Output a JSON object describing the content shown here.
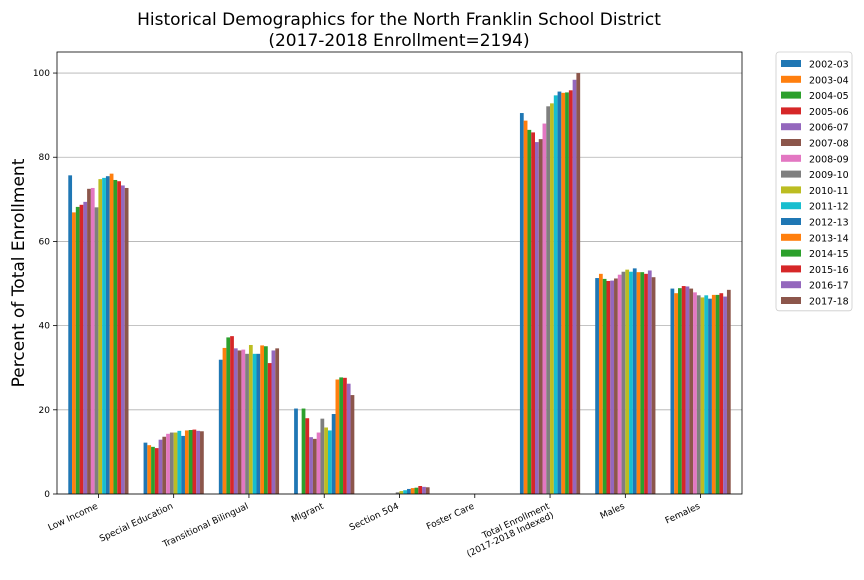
{
  "chart_data": {
    "type": "bar",
    "title": "Historical Demographics for the North Franklin School District",
    "subtitle": "(2017-2018 Enrollment=2194)",
    "xlabel": "",
    "ylabel": "Percent of Total Enrollment",
    "ylim": [
      0,
      105
    ],
    "yticks": [
      0,
      20,
      40,
      60,
      80,
      100
    ],
    "grid": "horizontal",
    "legend_position": "outside-top-right",
    "categories": [
      "Low Income",
      "Special Education",
      "Transitional Bilingual",
      "Migrant",
      "Section 504",
      "Foster Care",
      "Total Enrollment\n(2017-2018 Indexed)",
      "Males",
      "Females"
    ],
    "series": [
      {
        "name": "2002-03",
        "color": "#1f77b4",
        "values": [
          75.7,
          12.2,
          31.9,
          20.3,
          0.0,
          0.0,
          90.5,
          51.3,
          48.8
        ]
      },
      {
        "name": "2003-04",
        "color": "#ff7f0e",
        "values": [
          66.9,
          11.6,
          34.7,
          0.0,
          0.0,
          0.0,
          88.7,
          52.3,
          47.7
        ]
      },
      {
        "name": "2004-05",
        "color": "#2ca02c",
        "values": [
          68.2,
          11.2,
          37.2,
          20.3,
          0.0,
          0.0,
          86.5,
          51.1,
          48.9
        ]
      },
      {
        "name": "2005-06",
        "color": "#d62728",
        "values": [
          68.7,
          10.9,
          37.5,
          18.0,
          0.0,
          0.0,
          85.9,
          50.6,
          49.4
        ]
      },
      {
        "name": "2006-07",
        "color": "#9467bd",
        "values": [
          69.4,
          12.9,
          34.6,
          13.5,
          0.0,
          0.0,
          83.6,
          50.7,
          49.3
        ]
      },
      {
        "name": "2007-08",
        "color": "#8c564b",
        "values": [
          72.5,
          13.6,
          34.1,
          13.1,
          0.0,
          0.0,
          84.3,
          51.2,
          48.8
        ]
      },
      {
        "name": "2008-09",
        "color": "#e377c2",
        "values": [
          72.7,
          14.3,
          34.3,
          14.6,
          0.0,
          0.0,
          88.0,
          52.1,
          47.9
        ]
      },
      {
        "name": "2009-10",
        "color": "#7f7f7f",
        "values": [
          68.1,
          14.6,
          33.3,
          17.9,
          0.4,
          0.0,
          92.1,
          52.8,
          47.2
        ]
      },
      {
        "name": "2010-11",
        "color": "#bcbd22",
        "values": [
          74.8,
          14.6,
          35.4,
          15.8,
          0.7,
          0.0,
          92.8,
          53.3,
          46.7
        ]
      },
      {
        "name": "2011-12",
        "color": "#17becf",
        "values": [
          75.1,
          15.0,
          33.3,
          15.1,
          0.9,
          0.0,
          94.7,
          52.8,
          47.2
        ]
      },
      {
        "name": "2012-13",
        "color": "#1f77b4",
        "values": [
          75.5,
          13.8,
          33.3,
          19.0,
          1.2,
          0.0,
          95.6,
          53.6,
          46.4
        ]
      },
      {
        "name": "2013-14",
        "color": "#ff7f0e",
        "values": [
          76.1,
          15.1,
          35.3,
          27.2,
          1.4,
          0.0,
          95.3,
          52.7,
          47.3
        ]
      },
      {
        "name": "2014-15",
        "color": "#2ca02c",
        "values": [
          74.6,
          15.2,
          35.1,
          27.7,
          1.5,
          0.0,
          95.4,
          52.7,
          47.3
        ]
      },
      {
        "name": "2015-16",
        "color": "#d62728",
        "values": [
          74.3,
          15.3,
          31.1,
          27.6,
          1.9,
          0.0,
          95.9,
          52.3,
          47.7
        ]
      },
      {
        "name": "2016-17",
        "color": "#9467bd",
        "values": [
          73.3,
          15.0,
          34.1,
          26.2,
          1.7,
          0.0,
          98.4,
          53.1,
          46.9
        ]
      },
      {
        "name": "2017-18",
        "color": "#8c564b",
        "values": [
          72.7,
          14.9,
          34.6,
          23.5,
          1.6,
          0.0,
          100.0,
          51.5,
          48.5
        ]
      }
    ]
  }
}
